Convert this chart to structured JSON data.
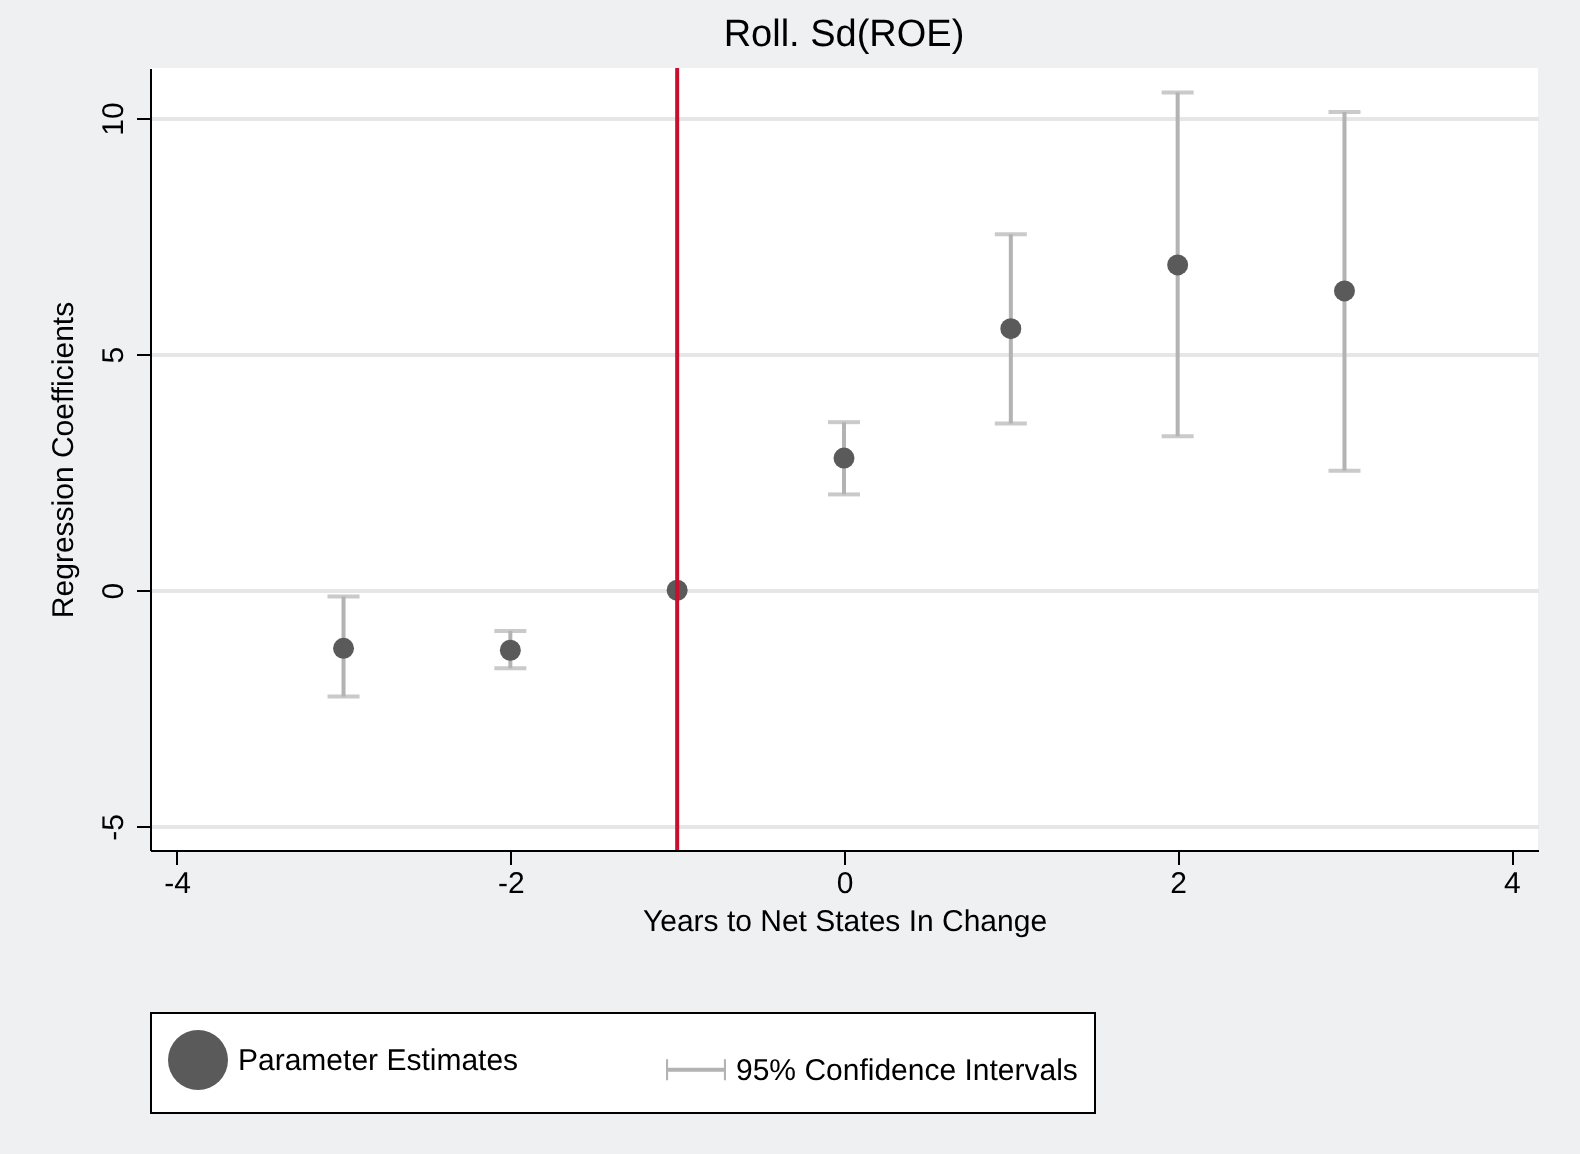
{
  "chart_data": {
    "type": "scatter",
    "title": "Roll. Sd(ROE)",
    "xlabel": "Years to Net States In Change",
    "ylabel": "Regression Coefficients",
    "x": [
      -3,
      -2,
      -1,
      0,
      1,
      2,
      3
    ],
    "series": [
      {
        "name": "Parameter Estimates",
        "color": "#5a5a5a",
        "values": [
          -1.23,
          -1.27,
          0,
          2.8,
          5.54,
          6.89,
          6.34
        ],
        "errors": [
          [
            -2.25,
            -0.13
          ],
          [
            -1.65,
            -0.86
          ],
          null,
          [
            2.03,
            3.56
          ],
          [
            3.53,
            7.54
          ],
          [
            3.26,
            10.54
          ],
          [
            2.53,
            10.13
          ]
        ]
      }
    ],
    "annotations": [
      "95% Confidence Intervals"
    ],
    "xlim": [
      -4.16,
      4.16
    ],
    "xticks": [
      -4,
      -2,
      0,
      2,
      4
    ],
    "ylim": [
      -5.5,
      11.06
    ],
    "yticks": [
      -5,
      0,
      5,
      10
    ],
    "ref_lines": [
      {
        "axis": "x",
        "value": -1,
        "color": "#c8102e"
      }
    ],
    "grid": "y",
    "legend": "bottom",
    "marker": "circle"
  }
}
